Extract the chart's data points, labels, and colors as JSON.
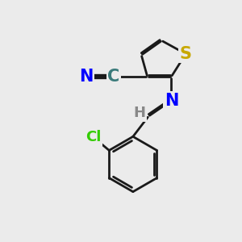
{
  "background_color": "#ebebeb",
  "bond_color": "#1a1a1a",
  "bond_width": 2.0,
  "atoms": {
    "S": {
      "color": "#c8a800",
      "fontsize": 15,
      "fontweight": "bold"
    },
    "N": {
      "color": "#0000ff",
      "fontsize": 15,
      "fontweight": "bold"
    },
    "C_label": {
      "color": "#3a7a7a",
      "fontsize": 15,
      "fontweight": "bold"
    },
    "Cl": {
      "color": "#33cc00",
      "fontsize": 13,
      "fontweight": "bold"
    },
    "H": {
      "color": "#888888",
      "fontsize": 13,
      "fontweight": "bold"
    }
  },
  "figure_size": [
    3.0,
    3.0
  ],
  "dpi": 100
}
